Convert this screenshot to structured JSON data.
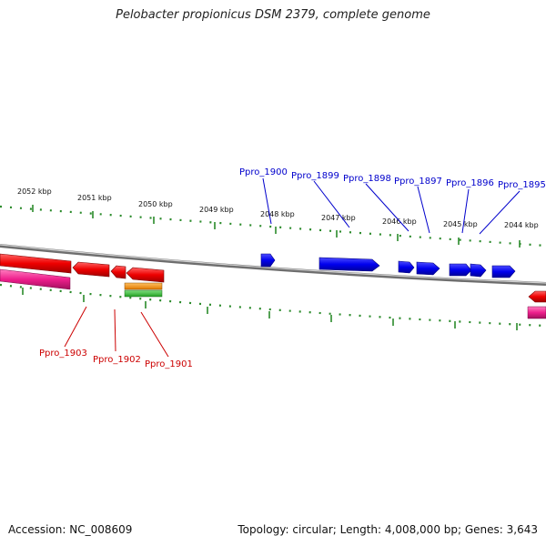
{
  "title": "Pelobacter propionicus DSM 2379, complete genome",
  "footer": {
    "accession": "Accession: NC_008609",
    "summary": "Topology: circular; Length: 4,008,000 bp; Genes: 3,643"
  },
  "colors": {
    "background": "#ffffff",
    "tick": "#2a8a2a",
    "backbone": "#8c8c8c",
    "forward_gene": "#0000ee",
    "reverse_gene": "#ee0000",
    "reverse_rna": "#ee1f8c",
    "forward_label": "#0000cc",
    "reverse_label": "#cc0000",
    "extra_orange": "#f08a00",
    "extra_green": "#33bb33"
  },
  "ticks": [
    {
      "label": "2052 kbp"
    },
    {
      "label": "2051 kbp"
    },
    {
      "label": "2050 kbp"
    },
    {
      "label": "2049 kbp"
    },
    {
      "label": "2048 kbp"
    },
    {
      "label": "2047 kbp"
    },
    {
      "label": "2046 kbp"
    },
    {
      "label": "2045 kbp"
    },
    {
      "label": "2044 kbp"
    }
  ],
  "forward_labels": [
    "Ppro_1900",
    "Ppro_1899",
    "Ppro_1898",
    "Ppro_1897",
    "Ppro_1896",
    "Ppro_1895"
  ],
  "reverse_labels": [
    "Ppro_1903",
    "Ppro_1902",
    "Ppro_1901"
  ]
}
